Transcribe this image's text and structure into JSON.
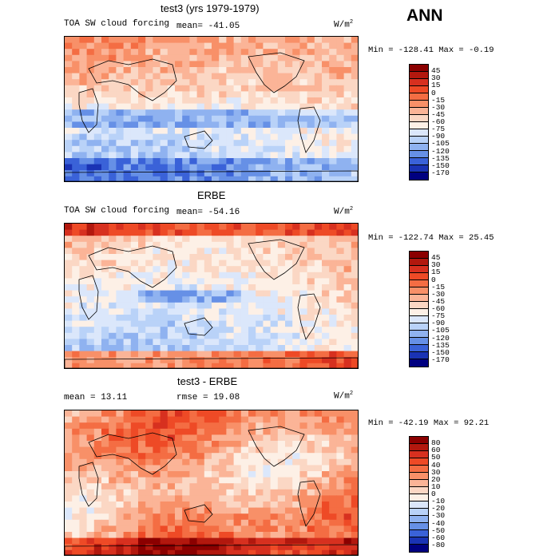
{
  "season": "ANN",
  "panels": [
    {
      "title": "test3 (yrs 1979-1979)",
      "variable": "TOA SW cloud forcing",
      "stat1": "mean= -41.05",
      "stat2": "",
      "units_base": "W/m",
      "units_exp": "2",
      "minmax": "Min = -128.41 Max =  -0.19",
      "levels": [
        "45",
        "30",
        "15",
        "0",
        "-15",
        "-30",
        "-45",
        "-60",
        "-75",
        "-90",
        "-105",
        "-120",
        "-135",
        "-150",
        "-170"
      ]
    },
    {
      "title": "ERBE",
      "variable": "TOA SW cloud forcing",
      "stat1": "mean= -54.16",
      "stat2": "",
      "units_base": "W/m",
      "units_exp": "2",
      "minmax": "Min = -122.74 Max =  25.45",
      "levels": [
        "45",
        "30",
        "15",
        "0",
        "-15",
        "-30",
        "-45",
        "-60",
        "-75",
        "-90",
        "-105",
        "-120",
        "-135",
        "-150",
        "-170"
      ]
    },
    {
      "title": "test3 - ERBE",
      "variable": "",
      "stat1": "mean =  13.11",
      "stat2": "rmse =  19.08",
      "units_base": "W/m",
      "units_exp": "2",
      "minmax": "Min = -42.19 Max =  92.21",
      "levels": [
        "80",
        "60",
        "50",
        "40",
        "30",
        "20",
        "10",
        "0",
        "-10",
        "-20",
        "-30",
        "-40",
        "-50",
        "-60",
        "-80"
      ]
    }
  ],
  "chart_data": [
    {
      "type": "heatmap",
      "title": "test3 (yrs 1979-1979)",
      "field": "TOA SW cloud forcing",
      "units": "W/m2",
      "mean": -41.05,
      "min": -128.41,
      "max": -0.19,
      "contour_levels": [
        45,
        30,
        15,
        0,
        -15,
        -30,
        -45,
        -60,
        -75,
        -90,
        -105,
        -120,
        -135,
        -150,
        -170
      ]
    },
    {
      "type": "heatmap",
      "title": "ERBE",
      "field": "TOA SW cloud forcing",
      "units": "W/m2",
      "mean": -54.16,
      "min": -122.74,
      "max": 25.45,
      "contour_levels": [
        45,
        30,
        15,
        0,
        -15,
        -30,
        -45,
        -60,
        -75,
        -90,
        -105,
        -120,
        -135,
        -150,
        -170
      ]
    },
    {
      "type": "heatmap",
      "title": "test3 - ERBE",
      "units": "W/m2",
      "mean": 13.11,
      "rmse": 19.08,
      "min": -42.19,
      "max": 92.21,
      "contour_levels": [
        80,
        60,
        50,
        40,
        30,
        20,
        10,
        0,
        -10,
        -20,
        -30,
        -40,
        -50,
        -60,
        -80
      ]
    }
  ],
  "colors": {
    "field_palette": [
      "#8b0000",
      "#b2180e",
      "#d7301f",
      "#ee4a26",
      "#f46d43",
      "#f89068",
      "#fbb497",
      "#fbd7c4",
      "#fdf0e6",
      "#dbe7fb",
      "#b9d2f8",
      "#8fb2f0",
      "#6690e6",
      "#3a62d8",
      "#1a33b4",
      "#000080"
    ],
    "diff_palette": [
      "#8b0000",
      "#b2180e",
      "#d7301f",
      "#ee4a26",
      "#f46d43",
      "#f89068",
      "#fbb497",
      "#fbd7c4",
      "#fdf0e6",
      "#dbe7fb",
      "#b9d2f8",
      "#8fb2f0",
      "#6690e6",
      "#3a62d8",
      "#1a33b4",
      "#000080"
    ]
  }
}
